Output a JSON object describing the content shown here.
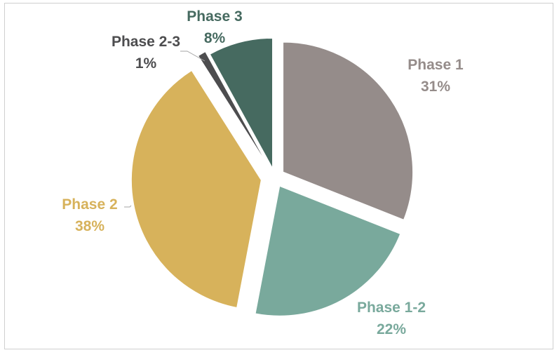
{
  "chart_data": {
    "type": "pie",
    "title": "",
    "exploded": true,
    "categories": [
      "Phase 1",
      "Phase 1-2",
      "Phase 2",
      "Phase 2-3",
      "Phase 3"
    ],
    "values": [
      31,
      22,
      38,
      1,
      8
    ],
    "value_labels": [
      "31%",
      "22%",
      "38%",
      "1%",
      "8%"
    ],
    "colors": [
      "#958c8a",
      "#79a99c",
      "#d7b25b",
      "#4d4d4f",
      "#466a60"
    ],
    "label_colors": [
      "#958c8a",
      "#79a99c",
      "#d7b25b",
      "#4d4d4f",
      "#466a60"
    ]
  }
}
